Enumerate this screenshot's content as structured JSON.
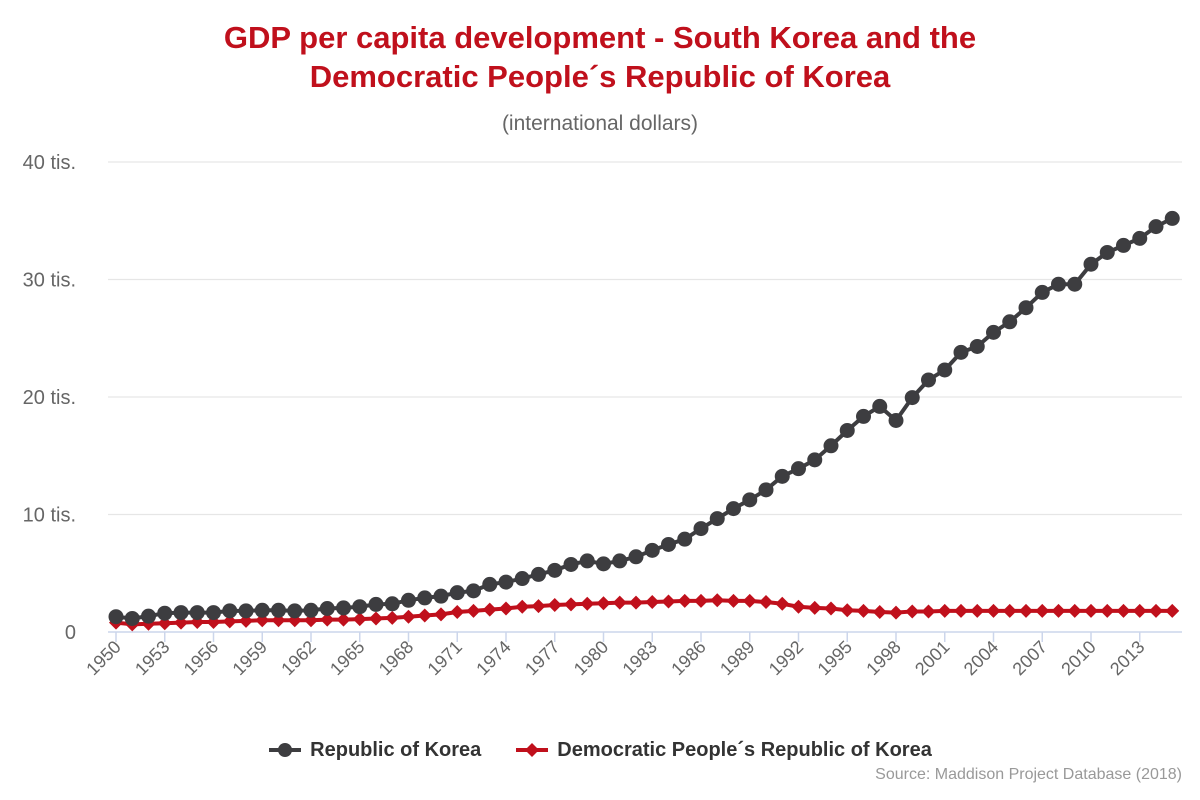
{
  "chart_data": {
    "type": "line",
    "title_line1": "GDP per capita development - South Korea and the",
    "title_line2": "Democratic People´s Republic of Korea",
    "subtitle": "(international dollars)",
    "source": "Source: Maddison Project Database (2018)",
    "ylim": [
      0,
      40000
    ],
    "yticks": [
      0,
      10000,
      20000,
      30000,
      40000
    ],
    "ytick_labels": [
      "0",
      "10 tis.",
      "20 tis.",
      "30 tis.",
      "40 tis."
    ],
    "xtick_years": [
      1950,
      1953,
      1956,
      1959,
      1962,
      1965,
      1968,
      1971,
      1974,
      1977,
      1980,
      1983,
      1986,
      1989,
      1992,
      1995,
      1998,
      2001,
      2004,
      2007,
      2010,
      2013
    ],
    "grid": true,
    "legend_position": "bottom-center",
    "x_start": 1950,
    "series": [
      {
        "name": "Republic of Korea",
        "color": "#3d3d40",
        "marker": "circle",
        "values": [
          1300,
          1150,
          1350,
          1600,
          1650,
          1650,
          1650,
          1800,
          1800,
          1850,
          1850,
          1800,
          1850,
          2000,
          2050,
          2150,
          2350,
          2400,
          2700,
          2900,
          3050,
          3350,
          3500,
          4050,
          4250,
          4550,
          4900,
          5250,
          5750,
          6050,
          5800,
          6050,
          6400,
          6950,
          7450,
          7900,
          8800,
          9650,
          10500,
          11250,
          12100,
          13250,
          13900,
          14650,
          15850,
          17150,
          18350,
          19200,
          18000,
          19950,
          21450,
          22300,
          23800,
          24300,
          25500,
          26400,
          27600,
          28900,
          29600,
          29600,
          31300,
          32300,
          32900,
          33500,
          34500,
          35200
        ]
      },
      {
        "name": "Democratic People´s Republic of Korea",
        "color": "#c0101c",
        "marker": "diamond",
        "values": [
          800,
          650,
          700,
          750,
          800,
          850,
          850,
          900,
          950,
          1000,
          1000,
          1000,
          1000,
          1050,
          1050,
          1100,
          1150,
          1200,
          1300,
          1400,
          1500,
          1700,
          1800,
          1900,
          2000,
          2150,
          2200,
          2300,
          2350,
          2400,
          2450,
          2500,
          2500,
          2550,
          2600,
          2650,
          2650,
          2700,
          2650,
          2650,
          2550,
          2400,
          2150,
          2050,
          2000,
          1850,
          1800,
          1700,
          1650,
          1750,
          1750,
          1800,
          1800,
          1800,
          1800,
          1800,
          1800,
          1800,
          1800,
          1800,
          1800,
          1800,
          1800,
          1800,
          1800,
          1800
        ]
      }
    ]
  }
}
